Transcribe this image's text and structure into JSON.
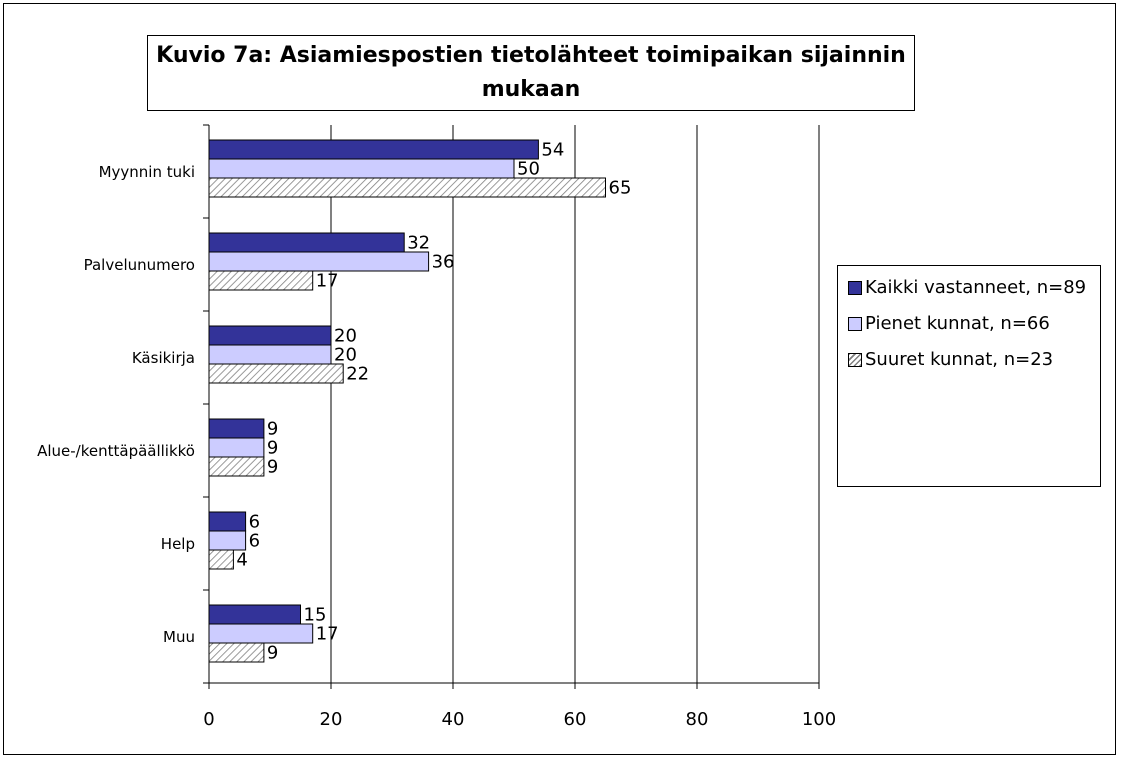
{
  "chart_data": {
    "type": "hbar",
    "title": "Kuvio 7a: Asiamiespostien tietolähteet toimipaikan sijainnin mukaan",
    "categories": [
      "Myynnin tuki",
      "Palvelunumero",
      "Käsikirja",
      "Alue-/kenttäpäällikkö",
      "Help",
      "Muu"
    ],
    "series": [
      {
        "name": "Kaikki vastanneet, n=89",
        "color": "#333399",
        "values": [
          54,
          32,
          20,
          9,
          6,
          15
        ]
      },
      {
        "name": "Pienet kunnat, n=66",
        "color": "#ccccff",
        "values": [
          50,
          36,
          20,
          9,
          6,
          17
        ]
      },
      {
        "name": "Suuret kunnat, n=23",
        "color": "#808080",
        "pattern": "diagonal",
        "values": [
          65,
          17,
          22,
          9,
          4,
          9
        ]
      }
    ],
    "xlim": [
      0,
      100
    ],
    "xticks": [
      0,
      20,
      40,
      60,
      80,
      100
    ],
    "grid": true,
    "legend": "right"
  }
}
